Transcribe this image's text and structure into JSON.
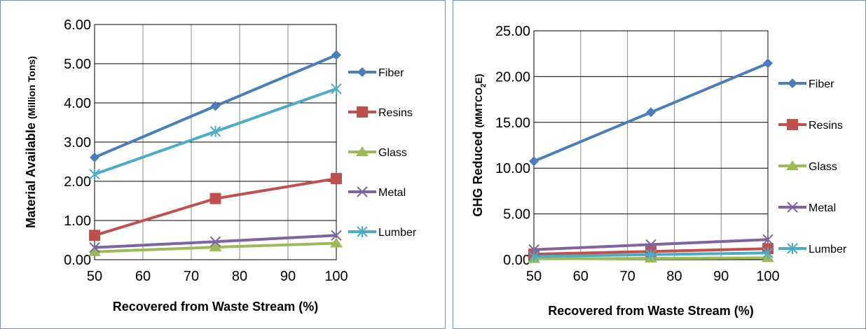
{
  "chart_data": [
    {
      "type": "line",
      "title": "",
      "xlabel": "Recovered from Waste Stream (%)",
      "ylabel": "Material Available",
      "ylabel_unit": "(Million Tons)",
      "x": [
        50,
        75,
        100
      ],
      "xticks": [
        "50",
        "60",
        "70",
        "80",
        "90",
        "100"
      ],
      "xlim": [
        50,
        100
      ],
      "yticks": [
        "0.00",
        "1.00",
        "2.00",
        "3.00",
        "4.00",
        "5.00",
        "6.00"
      ],
      "ylim": [
        0,
        6
      ],
      "grid": true,
      "legend_position": "right",
      "series": [
        {
          "name": "Fiber",
          "values": [
            2.61,
            3.92,
            5.22
          ],
          "color": "#4a7ebb",
          "marker": "diamond"
        },
        {
          "name": "Resins",
          "values": [
            0.62,
            1.56,
            2.07
          ],
          "color": "#c0504d",
          "marker": "square"
        },
        {
          "name": "Glass",
          "values": [
            0.2,
            0.32,
            0.42
          ],
          "color": "#9bbb59",
          "marker": "triangle"
        },
        {
          "name": "Metal",
          "values": [
            0.31,
            0.46,
            0.62
          ],
          "color": "#8064a2",
          "marker": "x"
        },
        {
          "name": "Lumber",
          "values": [
            2.18,
            3.27,
            4.36
          ],
          "color": "#4bacc6",
          "marker": "star"
        }
      ]
    },
    {
      "type": "line",
      "title": "",
      "xlabel": "Recovered from Waste Stream (%)",
      "ylabel": "GHG Reduced",
      "ylabel_unit": "(MMTCO",
      "ylabel_unit_sub": "2",
      "ylabel_unit_end": "E)",
      "x": [
        50,
        75,
        100
      ],
      "xticks": [
        "50",
        "60",
        "70",
        "80",
        "90",
        "100"
      ],
      "xlim": [
        50,
        100
      ],
      "yticks": [
        "0.00",
        "5.00",
        "10.00",
        "15.00",
        "20.00",
        "25.00"
      ],
      "ylim": [
        0,
        25
      ],
      "grid": true,
      "legend_position": "right",
      "series": [
        {
          "name": "Fiber",
          "values": [
            10.75,
            16.1,
            21.45
          ],
          "color": "#4a7ebb",
          "marker": "diamond"
        },
        {
          "name": "Resins",
          "values": [
            0.6,
            0.9,
            1.2
          ],
          "color": "#c0504d",
          "marker": "square"
        },
        {
          "name": "Glass",
          "values": [
            0.1,
            0.15,
            0.2
          ],
          "color": "#9bbb59",
          "marker": "triangle"
        },
        {
          "name": "Metal",
          "values": [
            1.1,
            1.65,
            2.2
          ],
          "color": "#8064a2",
          "marker": "x"
        },
        {
          "name": "Lumber",
          "values": [
            0.35,
            0.55,
            0.75
          ],
          "color": "#4bacc6",
          "marker": "star"
        }
      ]
    }
  ]
}
